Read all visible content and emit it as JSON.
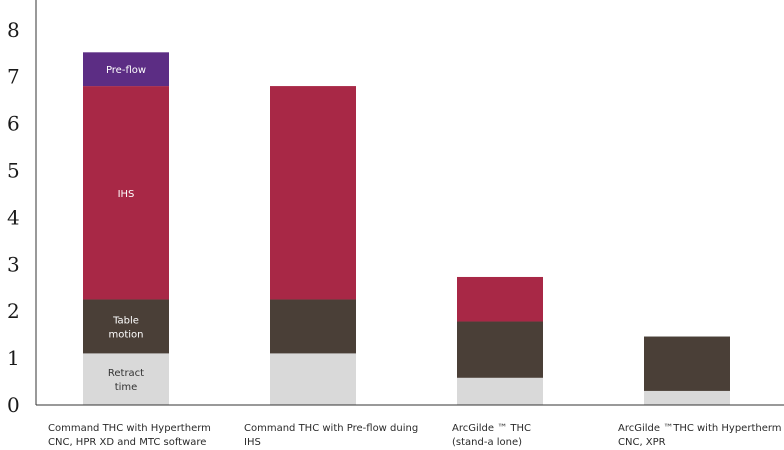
{
  "chart_data": {
    "type": "bar",
    "stacked": true,
    "ylim": [
      0,
      8
    ],
    "yticks": [
      "0",
      "1",
      "2",
      "3",
      "4",
      "5",
      "6",
      "7",
      "8"
    ],
    "grid": false,
    "legend": "none",
    "categories": [
      [
        "Command THC with Hypertherm",
        "CNC, HPR XD and MTC software"
      ],
      [
        "Command THC with Pre-flow duing",
        "IHS"
      ],
      [
        "ArcGilde ™ THC",
        "(stand-a lone)"
      ],
      [
        "ArcGilde  ™THC with Hypertherm",
        "CNC, XPR"
      ]
    ],
    "series": [
      {
        "name": "Retract time",
        "label_lines": [
          "Retract",
          "time"
        ],
        "color": "#d9d9d9",
        "label_color": "#333333",
        "values": [
          1.1,
          1.1,
          0.58,
          0.3
        ]
      },
      {
        "name": "Table motion",
        "label_lines": [
          "Table",
          "motion"
        ],
        "color": "#4a3f37",
        "label_color": "#ffffff",
        "values": [
          1.15,
          1.15,
          1.2,
          1.16
        ]
      },
      {
        "name": "IHS",
        "label_lines": [
          "IHS"
        ],
        "color": "#a82846",
        "label_color": "#ffffff",
        "values": [
          4.55,
          4.55,
          0.95,
          0
        ]
      },
      {
        "name": "Pre-flow",
        "label_lines": [
          "Pre-flow"
        ],
        "color": "#5c2d84",
        "label_color": "#ffffff",
        "values": [
          0.72,
          0,
          0,
          0
        ]
      }
    ],
    "labeled_category_index": 0
  }
}
